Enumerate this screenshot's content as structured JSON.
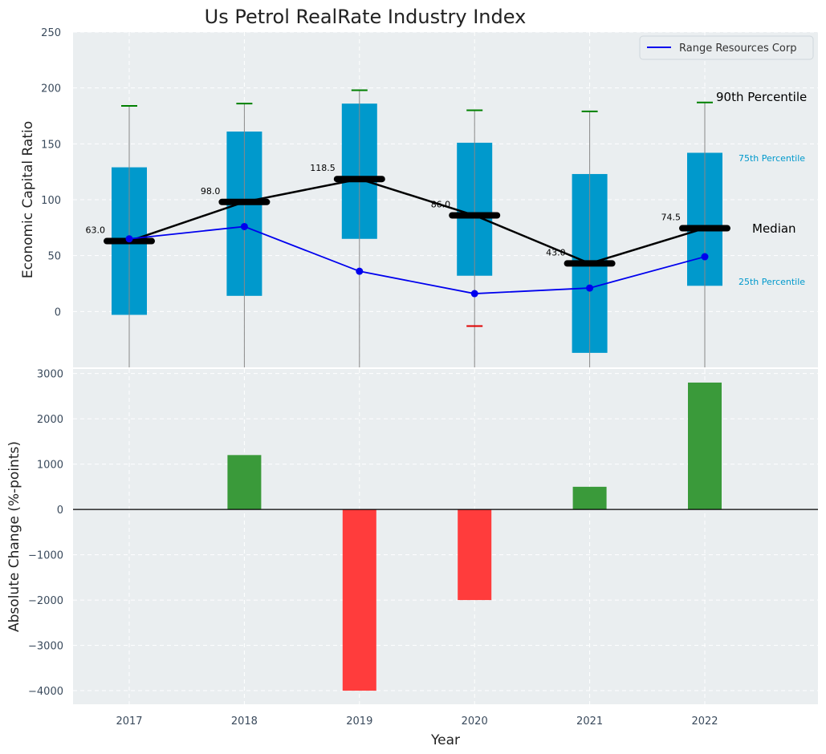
{
  "chart_data": [
    {
      "type": "box",
      "title": "Us Petrol RealRate Industry Index",
      "ylabel": "Economic Capital Ratio",
      "ylim": [
        -50,
        250
      ],
      "yticks": [
        0,
        50,
        100,
        150,
        200,
        250
      ],
      "categories": [
        "2017",
        "2018",
        "2019",
        "2020",
        "2021",
        "2022"
      ],
      "boxes": [
        {
          "q1": -3,
          "q3": 129,
          "median": 63.0,
          "median_label": "63.0",
          "p90": 184,
          "p10": null
        },
        {
          "q1": 14,
          "q3": 161,
          "median": 98.0,
          "median_label": "98.0",
          "p90": 186,
          "p10": null
        },
        {
          "q1": 65,
          "q3": 186,
          "median": 118.5,
          "median_label": "118.5",
          "p90": 198,
          "p10": null
        },
        {
          "q1": 32,
          "q3": 151,
          "median": 86.0,
          "median_label": "86.0",
          "p90": 180,
          "p10": -13
        },
        {
          "q1": -37,
          "q3": 123,
          "median": 43.0,
          "median_label": "43.0",
          "p90": 179,
          "p10": null
        },
        {
          "q1": 23,
          "q3": 142,
          "median": 74.5,
          "median_label": "74.5",
          "p90": 187,
          "p10": null
        }
      ],
      "series": [
        {
          "name": "Range Resources Corp",
          "values": [
            65,
            76,
            36,
            16,
            21,
            49
          ],
          "color": "#0000ee"
        }
      ],
      "legend": {
        "entries": [
          "Range Resources Corp"
        ],
        "position": "top-right"
      },
      "annotations": {
        "p90": "90th Percentile",
        "p75": "75th Percentile",
        "median": "Median",
        "p25": "25th Percentile"
      },
      "colors": {
        "box": "#0099cc",
        "median": "#000000",
        "p90_cap": "#008000",
        "p10_cap": "#e00000",
        "whisker": "#888888",
        "bg": "#eaeef0"
      }
    },
    {
      "type": "bar",
      "xlabel": "Year",
      "ylabel": "Absolute Change (%-points)",
      "ylim": [
        -4300,
        3100
      ],
      "yticks": [
        -4000,
        -3000,
        -2000,
        -1000,
        0,
        1000,
        2000,
        3000
      ],
      "categories": [
        "2017",
        "2018",
        "2019",
        "2020",
        "2021",
        "2022"
      ],
      "values": [
        0,
        1200,
        -4000,
        -2000,
        500,
        2800
      ],
      "colors": {
        "positive": "#3a9a3a",
        "negative": "#ff3c3c"
      }
    }
  ]
}
